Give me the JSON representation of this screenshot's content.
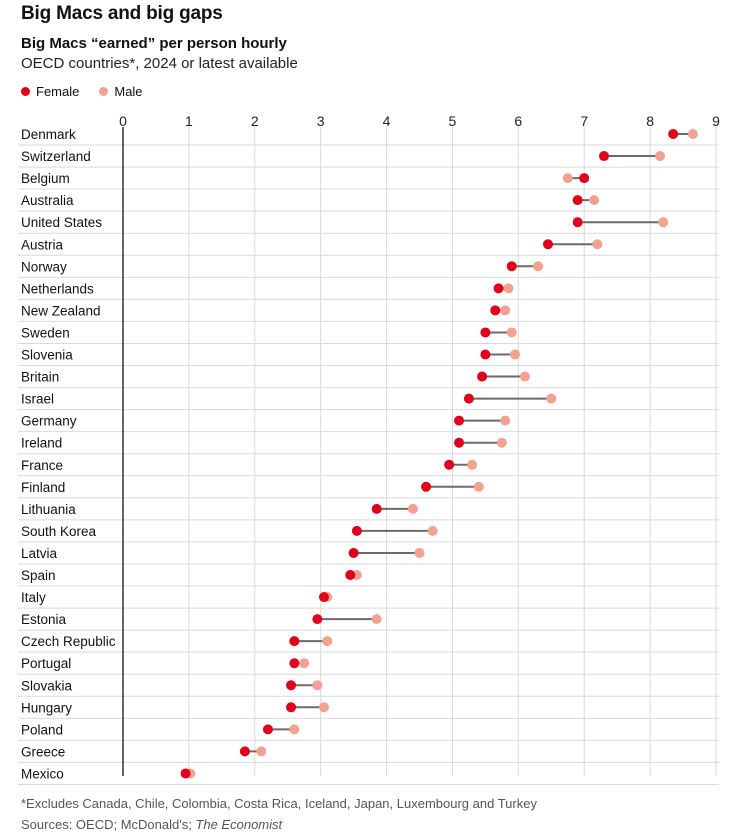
{
  "title": "Big Macs and big gaps",
  "subtitle": "Big Macs “earned” per person hourly",
  "description": "OECD countries*, 2024 or latest available",
  "legend": {
    "female": "Female",
    "male": "Male"
  },
  "colors": {
    "female": "#e3001b",
    "male": "#f5a190",
    "connector": "#6b6b6b",
    "grid": "#d9d9d9",
    "axis": "#333333"
  },
  "footnote": "*Excludes Canada, Chile, Colombia, Costa Rica, Iceland, Japan, Luxembourg and Turkey",
  "sources": {
    "prefix": "Sources: OECD; McDonald's; ",
    "publication": "The Economist"
  },
  "chart_data": {
    "type": "dumbbell",
    "title": "Big Macs “earned” per person hourly",
    "xlim": [
      0,
      9
    ],
    "xticks": [
      0,
      1,
      2,
      3,
      4,
      5,
      6,
      7,
      8,
      9
    ],
    "series": [
      {
        "name": "Female",
        "key": "female"
      },
      {
        "name": "Male",
        "key": "male"
      }
    ],
    "rows": [
      {
        "country": "Denmark",
        "female": 8.35,
        "male": 8.65
      },
      {
        "country": "Switzerland",
        "female": 7.3,
        "male": 8.15
      },
      {
        "country": "Belgium",
        "female": 7.0,
        "male": 6.75
      },
      {
        "country": "Australia",
        "female": 6.9,
        "male": 7.15
      },
      {
        "country": "United States",
        "female": 6.9,
        "male": 8.2
      },
      {
        "country": "Austria",
        "female": 6.45,
        "male": 7.2
      },
      {
        "country": "Norway",
        "female": 5.9,
        "male": 6.3
      },
      {
        "country": "Netherlands",
        "female": 5.7,
        "male": 5.85
      },
      {
        "country": "New Zealand",
        "female": 5.65,
        "male": 5.8
      },
      {
        "country": "Sweden",
        "female": 5.5,
        "male": 5.9
      },
      {
        "country": "Slovenia",
        "female": 5.5,
        "male": 5.95
      },
      {
        "country": "Britain",
        "female": 5.45,
        "male": 6.1
      },
      {
        "country": "Israel",
        "female": 5.25,
        "male": 6.5
      },
      {
        "country": "Germany",
        "female": 5.1,
        "male": 5.8
      },
      {
        "country": "Ireland",
        "female": 5.1,
        "male": 5.75
      },
      {
        "country": "France",
        "female": 4.95,
        "male": 5.3
      },
      {
        "country": "Finland",
        "female": 4.6,
        "male": 5.4
      },
      {
        "country": "Lithuania",
        "female": 3.85,
        "male": 4.4
      },
      {
        "country": "South Korea",
        "female": 3.55,
        "male": 4.7
      },
      {
        "country": "Latvia",
        "female": 3.5,
        "male": 4.5
      },
      {
        "country": "Spain",
        "female": 3.45,
        "male": 3.55
      },
      {
        "country": "Italy",
        "female": 3.05,
        "male": 3.1
      },
      {
        "country": "Estonia",
        "female": 2.95,
        "male": 3.85
      },
      {
        "country": "Czech Republic",
        "female": 2.6,
        "male": 3.1
      },
      {
        "country": "Portugal",
        "female": 2.6,
        "male": 2.75
      },
      {
        "country": "Slovakia",
        "female": 2.55,
        "male": 2.95
      },
      {
        "country": "Hungary",
        "female": 2.55,
        "male": 3.05
      },
      {
        "country": "Poland",
        "female": 2.2,
        "male": 2.6
      },
      {
        "country": "Greece",
        "female": 1.85,
        "male": 2.1
      },
      {
        "country": "Mexico",
        "female": 0.95,
        "male": 1.02
      }
    ]
  }
}
